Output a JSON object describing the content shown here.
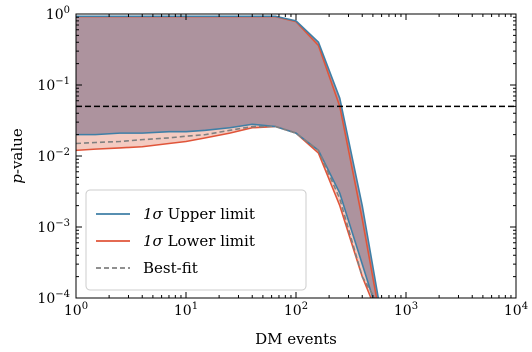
{
  "chart_data": {
    "type": "line",
    "xlabel": "DM events",
    "ylabel": "p-value",
    "xscale": "log",
    "yscale": "log",
    "xlim": [
      1,
      10000
    ],
    "ylim": [
      0.0001,
      1
    ],
    "x_ticks": [
      {
        "value": 1,
        "base": "10",
        "exp": "0"
      },
      {
        "value": 10,
        "base": "10",
        "exp": "1"
      },
      {
        "value": 100,
        "base": "10",
        "exp": "2"
      },
      {
        "value": 1000,
        "base": "10",
        "exp": "3"
      },
      {
        "value": 10000,
        "base": "10",
        "exp": "4"
      }
    ],
    "y_ticks": [
      {
        "value": 0.0001,
        "base": "10",
        "exp": "−4"
      },
      {
        "value": 0.001,
        "base": "10",
        "exp": "−3"
      },
      {
        "value": 0.01,
        "base": "10",
        "exp": "−2"
      },
      {
        "value": 0.1,
        "base": "10",
        "exp": "−1"
      },
      {
        "value": 1,
        "base": "10",
        "exp": "0"
      }
    ],
    "threshold": {
      "y": 0.05
    },
    "legend_position": "lower-left",
    "colors": {
      "upper": "#3f7fa6",
      "lower": "#e0553a",
      "bestfit": "#808080",
      "band_upper": "#a08a98",
      "band_lower": "#f2c2b6",
      "threshold": "#000000"
    },
    "series": [
      {
        "key": "upper_top",
        "name": "1σ Upper limit",
        "color_key": "upper",
        "dash": false,
        "x": [
          1,
          1.5,
          2.5,
          4,
          7,
          10,
          15,
          25,
          40,
          65,
          100,
          160,
          250,
          400,
          560
        ],
        "y": [
          0.93,
          0.93,
          0.93,
          0.93,
          0.93,
          0.93,
          0.93,
          0.93,
          0.93,
          0.93,
          0.8,
          0.4,
          0.065,
          0.002,
          0.0001
        ]
      },
      {
        "key": "upper_bottom",
        "name": "",
        "color_key": "upper",
        "dash": false,
        "x": [
          1,
          1.5,
          2.5,
          4,
          7,
          10,
          15,
          25,
          40,
          65,
          100,
          160,
          250,
          400,
          500
        ],
        "y": [
          0.02,
          0.02,
          0.021,
          0.021,
          0.022,
          0.022,
          0.023,
          0.025,
          0.028,
          0.026,
          0.021,
          0.012,
          0.003,
          0.0003,
          0.0001
        ]
      },
      {
        "key": "lower_top",
        "name": "1σ Lower limit",
        "color_key": "lower",
        "dash": false,
        "x": [
          1,
          1.5,
          2.5,
          4,
          7,
          10,
          15,
          25,
          40,
          65,
          100,
          160,
          250,
          400,
          540
        ],
        "y": [
          0.92,
          0.92,
          0.92,
          0.92,
          0.92,
          0.92,
          0.92,
          0.92,
          0.92,
          0.92,
          0.78,
          0.36,
          0.05,
          0.0013,
          0.0001
        ]
      },
      {
        "key": "lower_bottom",
        "name": "",
        "color_key": "lower",
        "dash": false,
        "x": [
          1,
          1.5,
          2.5,
          4,
          7,
          10,
          15,
          25,
          40,
          65,
          100,
          160,
          250,
          400,
          480
        ],
        "y": [
          0.012,
          0.0125,
          0.013,
          0.0135,
          0.015,
          0.016,
          0.018,
          0.021,
          0.025,
          0.026,
          0.021,
          0.011,
          0.002,
          0.0002,
          0.0001
        ]
      },
      {
        "key": "bestfit",
        "name": "Best-fit",
        "color_key": "bestfit",
        "dash": true,
        "x": [
          1,
          1.5,
          2.5,
          4,
          7,
          10,
          15,
          25,
          40,
          65,
          100,
          160,
          250,
          400,
          520
        ],
        "y": [
          0.015,
          0.0155,
          0.016,
          0.017,
          0.018,
          0.019,
          0.02,
          0.023,
          0.026,
          0.026,
          0.021,
          0.012,
          0.0025,
          0.0002,
          0.0001
        ]
      }
    ],
    "legend": [
      {
        "label_main": "1σ",
        "label_rest": " Upper limit",
        "color_key": "upper",
        "dash": false
      },
      {
        "label_main": "1σ",
        "label_rest": " Lower limit",
        "color_key": "lower",
        "dash": false
      },
      {
        "label_main": "",
        "label_rest": "Best-fit",
        "color_key": "bestfit",
        "dash": true
      }
    ]
  }
}
